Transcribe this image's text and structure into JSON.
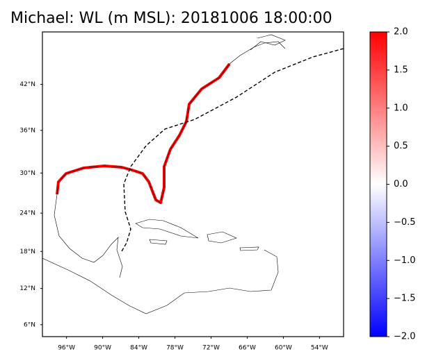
{
  "chart_data": {
    "type": "map",
    "title": "Michael: WL (m MSL): 20181006 18:00:00",
    "xlim": [
      -100,
      -50
    ],
    "ylim": [
      4,
      48.2
    ],
    "xticks": [
      {
        "value": -96,
        "label": "96°W"
      },
      {
        "value": -90,
        "label": "90°W"
      },
      {
        "value": -84,
        "label": "84°W"
      },
      {
        "value": -78,
        "label": "78°W"
      },
      {
        "value": -72,
        "label": "72°W"
      },
      {
        "value": -66,
        "label": "66°W"
      },
      {
        "value": -60,
        "label": "60°W"
      },
      {
        "value": -54,
        "label": "54°W"
      }
    ],
    "yticks": [
      {
        "value": 42,
        "label": "42°N"
      },
      {
        "value": 36,
        "label": "36°N"
      },
      {
        "value": 30,
        "label": "30°N"
      },
      {
        "value": 24,
        "label": "24°N"
      },
      {
        "value": 18,
        "label": "18°N"
      },
      {
        "value": 12,
        "label": "12°N"
      },
      {
        "value": 6,
        "label": "6°N"
      }
    ],
    "colorbar": {
      "lim": [
        -2,
        2
      ],
      "colors": [
        "#0000ff",
        "#ffffff",
        "#ff0000"
      ],
      "ticks": [
        {
          "value": 2,
          "label": "2.0"
        },
        {
          "value": 1.5,
          "label": "1.5"
        },
        {
          "value": 1,
          "label": "1.0"
        },
        {
          "value": 0.5,
          "label": "0.5"
        },
        {
          "value": 0,
          "label": "0.0"
        },
        {
          "value": -0.5,
          "label": "−0.5"
        },
        {
          "value": -1,
          "label": "−1.0"
        },
        {
          "value": -1.5,
          "label": "−1.5"
        },
        {
          "value": -2,
          "label": "−2.0"
        }
      ]
    }
  }
}
